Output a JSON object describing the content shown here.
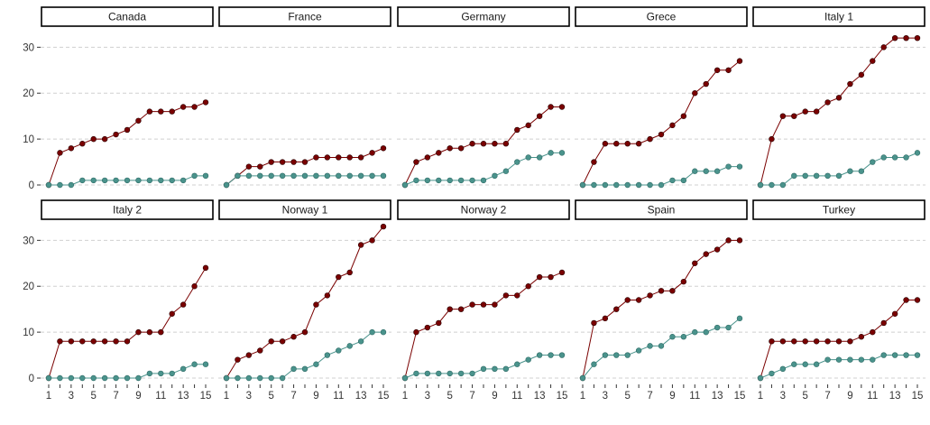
{
  "chart_data": {
    "type": "line",
    "facet_layout": "2 rows x 5 columns",
    "x": [
      1,
      2,
      3,
      4,
      5,
      6,
      7,
      8,
      9,
      10,
      11,
      12,
      13,
      14,
      15
    ],
    "x_tick_labels": [
      "1",
      "3",
      "5",
      "7",
      "9",
      "11",
      "13",
      "15"
    ],
    "ylim": [
      0,
      34
    ],
    "y_ticks": [
      0,
      10,
      20,
      30
    ],
    "y_tick_labels": [
      "0",
      "10",
      "20",
      "30"
    ],
    "xlabel": "",
    "ylabel": "",
    "grid": "horizontal dashed",
    "legend": "none",
    "series_colors": {
      "dark": "#7a0000",
      "teal": "#4a938c"
    },
    "panels": [
      {
        "name": "Canada",
        "series": [
          {
            "color_key": "dark",
            "values": [
              0,
              7,
              8,
              9,
              10,
              10,
              11,
              12,
              14,
              16,
              16,
              16,
              17,
              17,
              18
            ]
          },
          {
            "color_key": "teal",
            "values": [
              0,
              0,
              0,
              1,
              1,
              1,
              1,
              1,
              1,
              1,
              1,
              1,
              1,
              2,
              2
            ]
          }
        ]
      },
      {
        "name": "France",
        "series": [
          {
            "color_key": "dark",
            "values": [
              0,
              2,
              4,
              4,
              5,
              5,
              5,
              5,
              6,
              6,
              6,
              6,
              6,
              7,
              8
            ]
          },
          {
            "color_key": "teal",
            "values": [
              0,
              2,
              2,
              2,
              2,
              2,
              2,
              2,
              2,
              2,
              2,
              2,
              2,
              2,
              2
            ]
          }
        ]
      },
      {
        "name": "Germany",
        "series": [
          {
            "color_key": "dark",
            "values": [
              0,
              5,
              6,
              7,
              8,
              8,
              9,
              9,
              9,
              9,
              12,
              13,
              15,
              17,
              17
            ]
          },
          {
            "color_key": "teal",
            "values": [
              0,
              1,
              1,
              1,
              1,
              1,
              1,
              1,
              2,
              3,
              5,
              6,
              6,
              7,
              7
            ]
          }
        ]
      },
      {
        "name": "Grece",
        "series": [
          {
            "color_key": "dark",
            "values": [
              0,
              5,
              9,
              9,
              9,
              9,
              10,
              11,
              13,
              15,
              20,
              22,
              25,
              25,
              27
            ]
          },
          {
            "color_key": "teal",
            "values": [
              0,
              0,
              0,
              0,
              0,
              0,
              0,
              0,
              1,
              1,
              3,
              3,
              3,
              4,
              4
            ]
          }
        ]
      },
      {
        "name": "Italy 1",
        "series": [
          {
            "color_key": "dark",
            "values": [
              0,
              10,
              15,
              15,
              16,
              16,
              18,
              19,
              22,
              24,
              27,
              30,
              32,
              32,
              32
            ]
          },
          {
            "color_key": "teal",
            "values": [
              0,
              0,
              0,
              2,
              2,
              2,
              2,
              2,
              3,
              3,
              5,
              6,
              6,
              6,
              7
            ]
          }
        ]
      },
      {
        "name": "Italy 2",
        "series": [
          {
            "color_key": "dark",
            "values": [
              0,
              8,
              8,
              8,
              8,
              8,
              8,
              8,
              10,
              10,
              10,
              14,
              16,
              20,
              24
            ]
          },
          {
            "color_key": "teal",
            "values": [
              0,
              0,
              0,
              0,
              0,
              0,
              0,
              0,
              0,
              1,
              1,
              1,
              2,
              3,
              3
            ]
          }
        ]
      },
      {
        "name": "Norway 1",
        "series": [
          {
            "color_key": "dark",
            "values": [
              0,
              4,
              5,
              6,
              8,
              8,
              9,
              10,
              16,
              18,
              22,
              23,
              29,
              30,
              33
            ]
          },
          {
            "color_key": "teal",
            "values": [
              0,
              0,
              0,
              0,
              0,
              0,
              2,
              2,
              3,
              5,
              6,
              7,
              8,
              10,
              10
            ]
          }
        ]
      },
      {
        "name": "Norway 2",
        "series": [
          {
            "color_key": "dark",
            "values": [
              0,
              10,
              11,
              12,
              15,
              15,
              16,
              16,
              16,
              18,
              18,
              20,
              22,
              22,
              23
            ]
          },
          {
            "color_key": "teal",
            "values": [
              0,
              1,
              1,
              1,
              1,
              1,
              1,
              2,
              2,
              2,
              3,
              4,
              5,
              5,
              5
            ]
          }
        ]
      },
      {
        "name": "Spain",
        "series": [
          {
            "color_key": "dark",
            "values": [
              0,
              12,
              13,
              15,
              17,
              17,
              18,
              19,
              19,
              21,
              25,
              27,
              28,
              30,
              30
            ]
          },
          {
            "color_key": "teal",
            "values": [
              0,
              3,
              5,
              5,
              5,
              6,
              7,
              7,
              9,
              9,
              10,
              10,
              11,
              11,
              13
            ]
          }
        ]
      },
      {
        "name": "Turkey",
        "series": [
          {
            "color_key": "dark",
            "values": [
              0,
              8,
              8,
              8,
              8,
              8,
              8,
              8,
              8,
              9,
              10,
              12,
              14,
              17,
              17
            ]
          },
          {
            "color_key": "teal",
            "values": [
              0,
              1,
              2,
              3,
              3,
              3,
              4,
              4,
              4,
              4,
              4,
              5,
              5,
              5,
              5
            ]
          }
        ]
      }
    ]
  }
}
